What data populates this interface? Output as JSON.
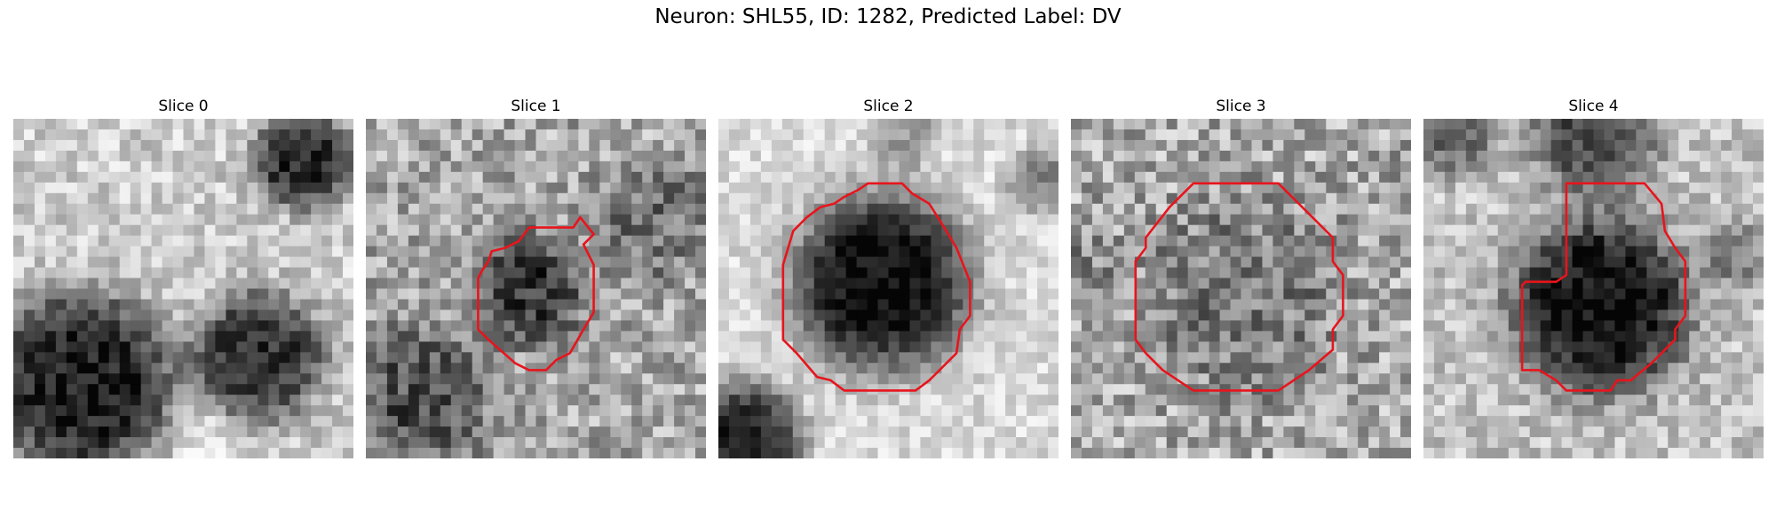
{
  "figure": {
    "title": "Neuron: SHL55, ID: 1282, Predicted Label: DV"
  },
  "style": {
    "contour_color": "#e8141c",
    "colormap": "grayscale"
  },
  "panels": [
    {
      "title": "Slice 0",
      "has_contour": false
    },
    {
      "title": "Slice 1",
      "has_contour": true
    },
    {
      "title": "Slice 2",
      "has_contour": true
    },
    {
      "title": "Slice 3",
      "has_contour": true
    },
    {
      "title": "Slice 4",
      "has_contour": true
    }
  ]
}
